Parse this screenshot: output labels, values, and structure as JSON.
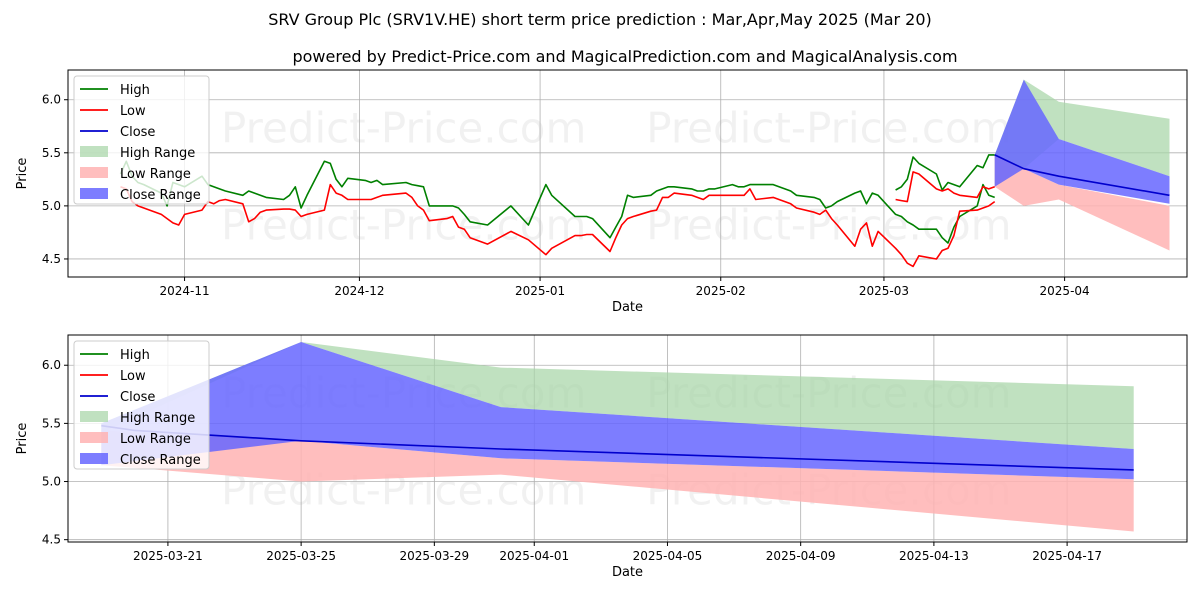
{
  "header": {
    "title": "SRV Group Plc (SRV1V.HE) short term price prediction : Mar,Apr,May 2025 (Mar 20)",
    "subtitle": "powered by Predict-Price.com and MagicalPrediction.com and MagicalAnalysis.com"
  },
  "watermark": "Predict-Price.com",
  "colors": {
    "high": "#008000",
    "low": "#ff0000",
    "close": "#0000cd",
    "high_range": "#a8d5a8",
    "low_range": "#ffb3b3",
    "close_range": "#6666ff"
  },
  "legend": {
    "high": "High",
    "low": "Low",
    "close": "Close",
    "high_range": "High Range",
    "low_range": "Low Range",
    "close_range": "Close Range"
  },
  "chart_data": [
    {
      "type": "line",
      "panel": "top",
      "xlabel": "Date",
      "ylabel": "Price",
      "xlim": [
        "2024-10-12",
        "2025-04-22"
      ],
      "ylim": [
        4.33,
        6.28
      ],
      "x_tick_labels": [
        "2024-11",
        "2024-12",
        "2025-01",
        "2025-02",
        "2025-03",
        "2025-04"
      ],
      "x_ticks": [
        "2024-11-01",
        "2024-12-01",
        "2025-01-01",
        "2025-02-01",
        "2025-03-01",
        "2025-04-01"
      ],
      "y_tick_labels": [
        "4.5",
        "5.0",
        "5.5",
        "6.0"
      ],
      "y_ticks": [
        4.5,
        5.0,
        5.5,
        6.0
      ],
      "grid": true,
      "legend_position": "upper-left",
      "series": [
        {
          "name": "High",
          "x": [
            "2024-10-21",
            "2024-10-22",
            "2024-10-23",
            "2024-10-24",
            "2024-10-25",
            "2024-10-28",
            "2024-10-29",
            "2024-10-30",
            "2024-10-31",
            "2024-11-01",
            "2024-11-04",
            "2024-11-05",
            "2024-11-06",
            "2024-11-07",
            "2024-11-08",
            "2024-11-11",
            "2024-11-12",
            "2024-11-13",
            "2024-11-14",
            "2024-11-15",
            "2024-11-18",
            "2024-11-19",
            "2024-11-20",
            "2024-11-21",
            "2024-11-22",
            "2024-11-25",
            "2024-11-26",
            "2024-11-27",
            "2024-11-28",
            "2024-11-29",
            "2024-12-02",
            "2024-12-03",
            "2024-12-04",
            "2024-12-05",
            "2024-12-09",
            "2024-12-10",
            "2024-12-11",
            "2024-12-12",
            "2024-12-13",
            "2024-12-16",
            "2024-12-17",
            "2024-12-18",
            "2024-12-19",
            "2024-12-20",
            "2024-12-23",
            "2024-12-27",
            "2024-12-30",
            "2025-01-02",
            "2025-01-03",
            "2025-01-07",
            "2025-01-08",
            "2025-01-09",
            "2025-01-10",
            "2025-01-13",
            "2025-01-14",
            "2025-01-15",
            "2025-01-16",
            "2025-01-17",
            "2025-01-20",
            "2025-01-21",
            "2025-01-22",
            "2025-01-23",
            "2025-01-24",
            "2025-01-27",
            "2025-01-28",
            "2025-01-29",
            "2025-01-30",
            "2025-01-31",
            "2025-02-03",
            "2025-02-04",
            "2025-02-05",
            "2025-02-06",
            "2025-02-07",
            "2025-02-10",
            "2025-02-11",
            "2025-02-12",
            "2025-02-13",
            "2025-02-14",
            "2025-02-17",
            "2025-02-18",
            "2025-02-19",
            "2025-02-20",
            "2025-02-21",
            "2025-02-24",
            "2025-02-25",
            "2025-02-26",
            "2025-02-27",
            "2025-02-28",
            "2025-03-03",
            "2025-03-04",
            "2025-03-05",
            "2025-03-06",
            "2025-03-07",
            "2025-03-10",
            "2025-03-11",
            "2025-03-12",
            "2025-03-13",
            "2025-03-14",
            "2025-03-17",
            "2025-03-18",
            "2025-03-19",
            "2025-03-20"
          ],
          "values": [
            5.3,
            5.42,
            5.28,
            5.22,
            5.2,
            5.12,
            5.0,
            5.22,
            5.2,
            5.18,
            5.28,
            5.2,
            5.18,
            5.16,
            5.14,
            5.1,
            5.14,
            5.12,
            5.1,
            5.08,
            5.06,
            5.1,
            5.18,
            4.98,
            5.1,
            5.42,
            5.4,
            5.25,
            5.18,
            5.26,
            5.24,
            5.22,
            5.24,
            5.2,
            5.22,
            5.2,
            5.19,
            5.18,
            5.0,
            5.0,
            5.0,
            4.98,
            4.92,
            4.85,
            4.82,
            5.0,
            4.82,
            5.2,
            5.1,
            4.9,
            4.9,
            4.9,
            4.88,
            4.7,
            4.8,
            4.9,
            5.1,
            5.08,
            5.1,
            5.14,
            5.16,
            5.18,
            5.18,
            5.16,
            5.14,
            5.14,
            5.16,
            5.16,
            5.2,
            5.18,
            5.18,
            5.2,
            5.2,
            5.2,
            5.18,
            5.16,
            5.14,
            5.1,
            5.08,
            5.06,
            4.98,
            5.0,
            5.04,
            5.12,
            5.14,
            5.02,
            5.12,
            5.1,
            4.92,
            4.9,
            4.85,
            4.82,
            4.78,
            4.78,
            4.7,
            4.65,
            4.8,
            4.9,
            5.0,
            5.2,
            5.1,
            5.08
          ]
        },
        {
          "name": "Low",
          "x": [
            "2024-10-21",
            "2024-10-22",
            "2024-10-23",
            "2024-10-24",
            "2024-10-25",
            "2024-10-28",
            "2024-10-29",
            "2024-10-30",
            "2024-10-31",
            "2024-11-01",
            "2024-11-04",
            "2024-11-05",
            "2024-11-06",
            "2024-11-07",
            "2024-11-08",
            "2024-11-11",
            "2024-11-12",
            "2024-11-13",
            "2024-11-14",
            "2024-11-15",
            "2024-11-18",
            "2024-11-19",
            "2024-11-20",
            "2024-11-21",
            "2024-11-22",
            "2024-11-25",
            "2024-11-26",
            "2024-11-27",
            "2024-11-28",
            "2024-11-29",
            "2024-12-02",
            "2024-12-03",
            "2024-12-04",
            "2024-12-05",
            "2024-12-09",
            "2024-12-10",
            "2024-12-11",
            "2024-12-12",
            "2024-12-13",
            "2024-12-16",
            "2024-12-17",
            "2024-12-18",
            "2024-12-19",
            "2024-12-20",
            "2024-12-23",
            "2024-12-27",
            "2024-12-30",
            "2025-01-02",
            "2025-01-03",
            "2025-01-07",
            "2025-01-08",
            "2025-01-09",
            "2025-01-10",
            "2025-01-13",
            "2025-01-14",
            "2025-01-15",
            "2025-01-16",
            "2025-01-17",
            "2025-01-20",
            "2025-01-21",
            "2025-01-22",
            "2025-01-23",
            "2025-01-24",
            "2025-01-27",
            "2025-01-28",
            "2025-01-29",
            "2025-01-30",
            "2025-01-31",
            "2025-02-03",
            "2025-02-04",
            "2025-02-05",
            "2025-02-06",
            "2025-02-07",
            "2025-02-10",
            "2025-02-11",
            "2025-02-12",
            "2025-02-13",
            "2025-02-14",
            "2025-02-17",
            "2025-02-18",
            "2025-02-19",
            "2025-02-20",
            "2025-02-21",
            "2025-02-24",
            "2025-02-25",
            "2025-02-26",
            "2025-02-27",
            "2025-02-28",
            "2025-03-03",
            "2025-03-04",
            "2025-03-05",
            "2025-03-06",
            "2025-03-07",
            "2025-03-10",
            "2025-03-11",
            "2025-03-12",
            "2025-03-13",
            "2025-03-14",
            "2025-03-17",
            "2025-03-18",
            "2025-03-19",
            "2025-03-20"
          ],
          "values": [
            5.18,
            5.16,
            5.04,
            5.0,
            4.98,
            4.92,
            4.88,
            4.84,
            4.82,
            4.92,
            4.96,
            5.04,
            5.02,
            5.05,
            5.06,
            5.02,
            4.85,
            4.88,
            4.94,
            4.96,
            4.97,
            4.97,
            4.96,
            4.9,
            4.92,
            4.96,
            5.2,
            5.12,
            5.1,
            5.06,
            5.06,
            5.06,
            5.08,
            5.1,
            5.12,
            5.08,
            5.0,
            4.96,
            4.86,
            4.88,
            4.9,
            4.8,
            4.78,
            4.7,
            4.64,
            4.76,
            4.68,
            4.54,
            4.6,
            4.72,
            4.72,
            4.73,
            4.73,
            4.57,
            4.7,
            4.82,
            4.88,
            4.9,
            4.95,
            4.96,
            5.08,
            5.08,
            5.12,
            5.1,
            5.08,
            5.06,
            5.1,
            5.1,
            5.1,
            5.1,
            5.1,
            5.16,
            5.06,
            5.08,
            5.06,
            5.04,
            5.02,
            4.98,
            4.94,
            4.92,
            4.96,
            4.88,
            4.82,
            4.62,
            4.78,
            4.84,
            4.62,
            4.76,
            4.6,
            4.54,
            4.46,
            4.43,
            4.53,
            4.5,
            4.58,
            4.6,
            4.72,
            4.95,
            4.96,
            4.98,
            5.0,
            5.04
          ]
        }
      ],
      "forecast": {
        "x": [
          "2025-03-20",
          "2025-03-25",
          "2025-03-31",
          "2025-04-19"
        ],
        "close": [
          5.48,
          5.35,
          5.28,
          5.1
        ],
        "high_range": {
          "upper": [
            5.48,
            6.19,
            5.98,
            5.82
          ],
          "lower": [
            5.18,
            5.35,
            5.63,
            5.28
          ]
        },
        "low_range": {
          "upper": [
            5.48,
            5.35,
            5.2,
            5.0
          ],
          "lower": [
            5.18,
            5.0,
            5.06,
            4.58
          ]
        },
        "close_range": {
          "upper": [
            5.48,
            6.19,
            5.63,
            5.28
          ],
          "lower": [
            5.18,
            5.35,
            5.2,
            5.02
          ]
        }
      },
      "late_history": {
        "x": [
          "2025-03-03",
          "2025-03-04",
          "2025-03-05",
          "2025-03-06",
          "2025-03-07",
          "2025-03-10",
          "2025-03-11",
          "2025-03-12",
          "2025-03-13",
          "2025-03-14",
          "2025-03-17",
          "2025-03-18",
          "2025-03-19",
          "2025-03-20"
        ],
        "high": [
          5.15,
          5.18,
          5.25,
          5.46,
          5.4,
          5.3,
          5.15,
          5.22,
          5.2,
          5.18,
          5.38,
          5.36,
          5.48,
          5.48
        ],
        "low": [
          5.06,
          5.05,
          5.04,
          5.32,
          5.3,
          5.16,
          5.14,
          5.16,
          5.12,
          5.1,
          5.08,
          5.18,
          5.16,
          5.18
        ]
      }
    },
    {
      "type": "area",
      "panel": "bottom",
      "xlabel": "Date",
      "ylabel": "Price",
      "xlim": [
        "2025-03-18",
        "2025-04-20.6"
      ],
      "ylim": [
        4.48,
        6.26
      ],
      "x_tick_labels": [
        "2025-03-21",
        "2025-03-25",
        "2025-03-29",
        "2025-04-01",
        "2025-04-05",
        "2025-04-09",
        "2025-04-13",
        "2025-04-17"
      ],
      "x_ticks": [
        "2025-03-21",
        "2025-03-25",
        "2025-03-29",
        "2025-04-01",
        "2025-04-05",
        "2025-04-09",
        "2025-04-13",
        "2025-04-17"
      ],
      "y_tick_labels": [
        "4.5",
        "5.0",
        "5.5",
        "6.0"
      ],
      "y_ticks": [
        4.5,
        5.0,
        5.5,
        6.0
      ],
      "grid": true,
      "legend_position": "upper-left",
      "series": [
        {
          "name": "Close",
          "x": [
            "2025-03-19",
            "2025-03-20",
            "2025-03-25",
            "2025-03-31",
            "2025-04-19"
          ],
          "values": [
            5.48,
            5.44,
            5.35,
            5.28,
            5.1
          ]
        },
        {
          "name": "High Range upper",
          "x": [
            "2025-03-19",
            "2025-03-25",
            "2025-03-31",
            "2025-04-19"
          ],
          "values": [
            5.5,
            6.2,
            5.98,
            5.82
          ]
        },
        {
          "name": "High Range lower",
          "x": [
            "2025-03-19",
            "2025-03-25",
            "2025-03-31",
            "2025-04-19"
          ],
          "values": [
            5.42,
            6.2,
            5.64,
            5.28
          ]
        },
        {
          "name": "Low Range upper",
          "x": [
            "2025-03-19",
            "2025-03-25",
            "2025-03-31",
            "2025-04-19"
          ],
          "values": [
            5.44,
            5.35,
            5.2,
            5.02
          ]
        },
        {
          "name": "Low Range lower",
          "x": [
            "2025-03-19",
            "2025-03-25",
            "2025-03-31",
            "2025-04-19"
          ],
          "values": [
            5.14,
            5.0,
            5.06,
            4.57
          ]
        },
        {
          "name": "Close Range upper",
          "x": [
            "2025-03-19",
            "2025-03-25",
            "2025-03-31",
            "2025-04-19"
          ],
          "values": [
            5.5,
            6.2,
            5.64,
            5.28
          ]
        },
        {
          "name": "Close Range lower",
          "x": [
            "2025-03-19",
            "2025-03-25",
            "2025-03-31",
            "2025-04-19"
          ],
          "values": [
            5.14,
            5.35,
            5.2,
            5.02
          ]
        }
      ]
    }
  ]
}
